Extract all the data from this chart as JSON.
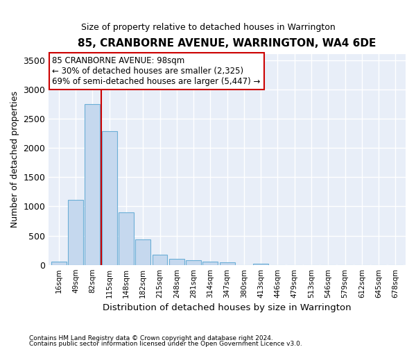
{
  "title": "85, CRANBORNE AVENUE, WARRINGTON, WA4 6DE",
  "subtitle": "Size of property relative to detached houses in Warrington",
  "xlabel": "Distribution of detached houses by size in Warrington",
  "ylabel": "Number of detached properties",
  "bar_color": "#c5d8ee",
  "bar_edge_color": "#6aaed6",
  "background_color": "#e8eef8",
  "grid_color": "#ffffff",
  "categories": [
    "16sqm",
    "49sqm",
    "82sqm",
    "115sqm",
    "148sqm",
    "182sqm",
    "215sqm",
    "248sqm",
    "281sqm",
    "314sqm",
    "347sqm",
    "380sqm",
    "413sqm",
    "446sqm",
    "479sqm",
    "513sqm",
    "546sqm",
    "579sqm",
    "612sqm",
    "645sqm",
    "678sqm"
  ],
  "values": [
    55,
    1110,
    2750,
    2290,
    900,
    430,
    175,
    105,
    80,
    55,
    40,
    0,
    25,
    0,
    0,
    0,
    0,
    0,
    0,
    0,
    0
  ],
  "ylim": [
    0,
    3600
  ],
  "yticks": [
    0,
    500,
    1000,
    1500,
    2000,
    2500,
    3000,
    3500
  ],
  "vline_x": 2.5,
  "annotation_title": "85 CRANBORNE AVENUE: 98sqm",
  "annotation_line1": "← 30% of detached houses are smaller (2,325)",
  "annotation_line2": "69% of semi-detached houses are larger (5,447) →",
  "annotation_box_color": "#ffffff",
  "annotation_box_edge": "#cc0000",
  "vline_color": "#cc0000",
  "footer1": "Contains HM Land Registry data © Crown copyright and database right 2024.",
  "footer2": "Contains public sector information licensed under the Open Government Licence v3.0."
}
